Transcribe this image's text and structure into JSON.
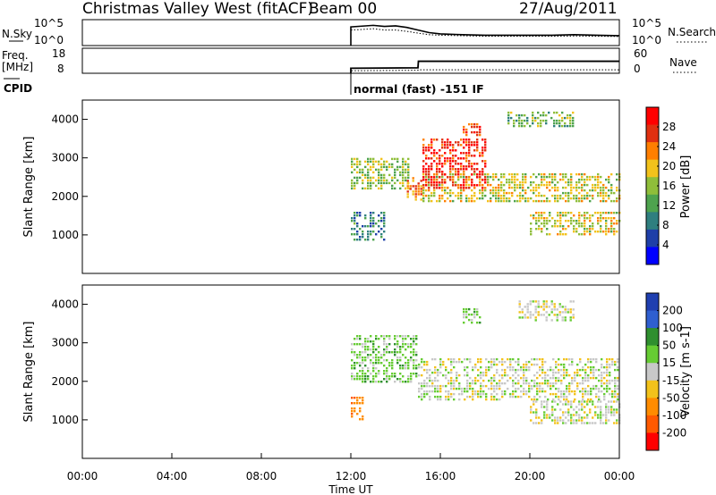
{
  "header": {
    "station": "Christmas Valley West (fitACF)",
    "beam": "Beam 00",
    "date": "27/Aug/2011"
  },
  "chart_data": [
    {
      "type": "line",
      "name": "noise",
      "left_label": "N.Sky",
      "right_label": "N.Search",
      "left_ticks": [
        "10^5",
        "10^0"
      ],
      "right_ticks": [
        "10^5",
        "10^0"
      ],
      "x": [
        12.0,
        12.5,
        13.0,
        13.5,
        14.0,
        14.5,
        15.0,
        15.5,
        16.0,
        17.0,
        18.0,
        19.0,
        20.0,
        21.0,
        22.0,
        23.0,
        24.0
      ],
      "series": [
        {
          "name": "N.Sky",
          "style": "solid",
          "values": [
            0.72,
            0.75,
            0.78,
            0.74,
            0.76,
            0.7,
            0.6,
            0.5,
            0.45,
            0.42,
            0.4,
            0.4,
            0.4,
            0.4,
            0.42,
            0.4,
            0.38
          ]
        },
        {
          "name": "N.Search",
          "style": "dotted",
          "values": [
            0.6,
            0.62,
            0.65,
            0.6,
            0.6,
            0.55,
            0.48,
            0.42,
            0.4,
            0.38,
            0.36,
            0.36,
            0.36,
            0.36,
            0.37,
            0.36,
            0.35
          ]
        }
      ]
    },
    {
      "type": "line",
      "name": "frequency",
      "left_label": "Freq.",
      "left_unit": "[MHz]",
      "right_label": "Nave",
      "left_ticks": [
        "18",
        "8"
      ],
      "right_ticks": [
        "60",
        "0"
      ],
      "x": [
        12.0,
        15.0,
        15.02,
        24.0
      ],
      "series": [
        {
          "name": "Freq.",
          "style": "solid",
          "values": [
            10.0,
            10.2,
            12.8,
            12.8
          ]
        },
        {
          "name": "Nave",
          "style": "dotted",
          "values": [
            9.0,
            9.2,
            9.4,
            9.4
          ]
        }
      ]
    },
    {
      "type": "label",
      "name": "cpid",
      "label": "CPID",
      "text": "normal (fast) -151 IF"
    },
    {
      "type": "heatmap",
      "name": "power",
      "ylabel": "Slant Range [km]",
      "yticks": [
        1000,
        2000,
        3000,
        4000
      ],
      "ylim": [
        0,
        4500
      ],
      "xlim": [
        0,
        24
      ],
      "colorbar_label": "Power [dB]",
      "colorbar_ticks": [
        4,
        8,
        12,
        16,
        20,
        24,
        28
      ],
      "colorbar_range": [
        0,
        32
      ],
      "colors": [
        "#0000ff",
        "#1e3fa8",
        "#2f7f7f",
        "#4ea34e",
        "#8fbe3a",
        "#f2c21b",
        "#ff7f00",
        "#e03010",
        "#ff0000"
      ],
      "regions": [
        {
          "t0": 12.0,
          "t1": 14.6,
          "r0": 2200,
          "r1": 3000,
          "value": 16
        },
        {
          "t0": 12.0,
          "t1": 13.5,
          "r0": 900,
          "r1": 1600,
          "value": 10
        },
        {
          "t0": 14.5,
          "t1": 15.2,
          "r0": 1900,
          "r1": 2500,
          "value": 22
        },
        {
          "t0": 15.2,
          "t1": 24.0,
          "r0": 1900,
          "r1": 2600,
          "value": 18
        },
        {
          "t0": 15.2,
          "t1": 18.0,
          "r0": 2200,
          "r1": 3500,
          "value": 28
        },
        {
          "t0": 17.0,
          "t1": 17.8,
          "r0": 3600,
          "r1": 3900,
          "value": 27
        },
        {
          "t0": 20.0,
          "t1": 24.0,
          "r0": 1000,
          "r1": 1600,
          "value": 18
        },
        {
          "t0": 19.0,
          "t1": 22.0,
          "r0": 3800,
          "r1": 4200,
          "value": 14
        }
      ]
    },
    {
      "type": "heatmap",
      "name": "velocity",
      "ylabel": "Slant Range [km]",
      "yticks": [
        1000,
        2000,
        3000,
        4000
      ],
      "ylim": [
        0,
        4500
      ],
      "xlim": [
        0,
        24
      ],
      "xticks": [
        "00:00",
        "04:00",
        "08:00",
        "12:00",
        "16:00",
        "20:00",
        "00:00"
      ],
      "xlabel": "Time UT",
      "colorbar_label": "Velocity [m s-1]",
      "colorbar_ticks": [
        200,
        100,
        50,
        15,
        -15,
        -50,
        -100,
        -200
      ],
      "colors": [
        "#1f3fb0",
        "#2f5fd0",
        "#2f8f2f",
        "#66cc33",
        "#c8c8c8",
        "#f2c21b",
        "#ff8c00",
        "#ff5a00",
        "#ff0000"
      ],
      "regions": [
        {
          "t0": 12.0,
          "t1": 15.0,
          "r0": 2000,
          "r1": 3200,
          "value": 30
        },
        {
          "t0": 15.0,
          "t1": 24.0,
          "r0": 1500,
          "r1": 2600,
          "value": 0
        },
        {
          "t0": 12.0,
          "t1": 12.6,
          "r0": 1000,
          "r1": 1600,
          "value": -80
        },
        {
          "t0": 17.0,
          "t1": 17.8,
          "r0": 3500,
          "r1": 3900,
          "value": 30
        },
        {
          "t0": 20.0,
          "t1": 24.0,
          "r0": 900,
          "r1": 1500,
          "value": 0
        },
        {
          "t0": 19.5,
          "t1": 22.0,
          "r0": 3600,
          "r1": 4100,
          "value": 0
        }
      ]
    }
  ]
}
